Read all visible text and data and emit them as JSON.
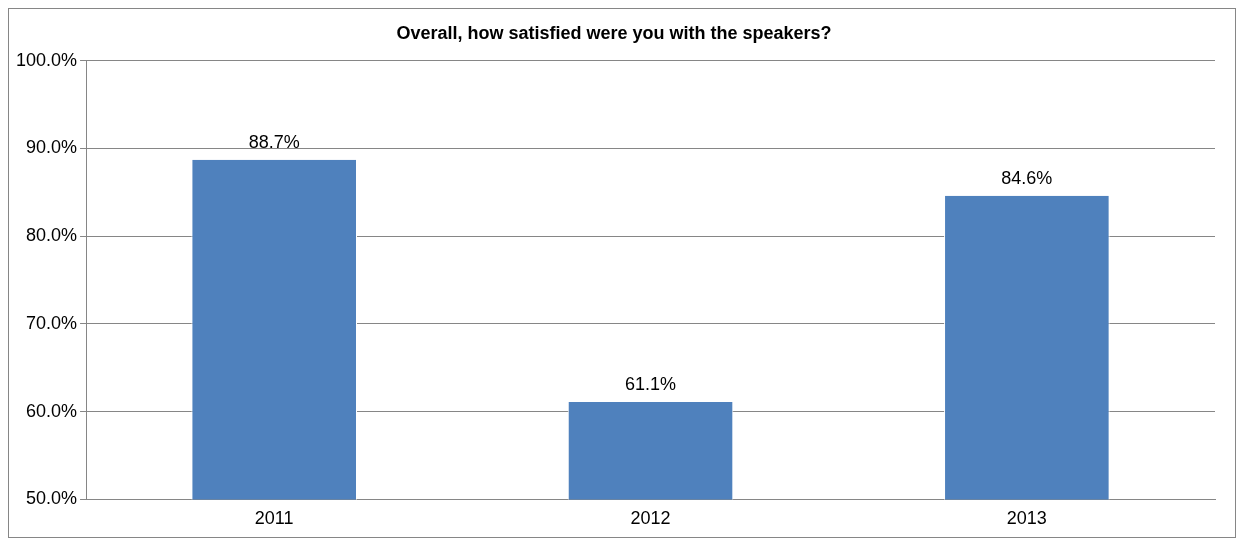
{
  "chart_data": {
    "type": "bar",
    "title": "Overall, how satisfied were you with the speakers?",
    "categories": [
      "2011",
      "2012",
      "2013"
    ],
    "values": [
      88.7,
      61.1,
      84.6
    ],
    "value_labels": [
      "88.7%",
      "61.1%",
      "84.6%"
    ],
    "color": "#4f81bd",
    "ylim": [
      50,
      100
    ],
    "yticks": [
      {
        "value": 50,
        "label": "50.0%"
      },
      {
        "value": 60,
        "label": "60.0%"
      },
      {
        "value": 70,
        "label": "70.0%"
      },
      {
        "value": 80,
        "label": "80.0%"
      },
      {
        "value": 90,
        "label": "90.0%"
      },
      {
        "value": 100,
        "label": "100.0%"
      }
    ],
    "grid": "y"
  }
}
